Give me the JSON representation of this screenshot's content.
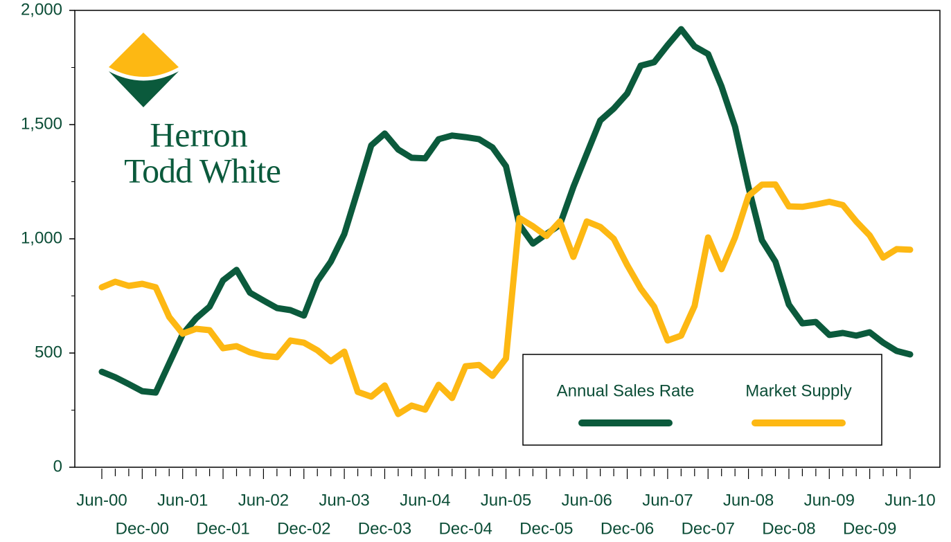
{
  "logo": {
    "line1": "Herron",
    "line2": "Todd White"
  },
  "chart_data": {
    "type": "line",
    "categories": [
      "Jun-00",
      null,
      null,
      "Dec-00",
      null,
      null,
      "Jun-01",
      null,
      null,
      "Dec-01",
      null,
      null,
      "Jun-02",
      null,
      null,
      "Dec-02",
      null,
      null,
      "Jun-03",
      null,
      null,
      "Dec-03",
      null,
      null,
      "Jun-04",
      null,
      null,
      "Dec-04",
      null,
      null,
      "Jun-05",
      null,
      null,
      "Dec-05",
      null,
      null,
      "Jun-06",
      null,
      null,
      "Dec-06",
      null,
      null,
      "Jun-07",
      null,
      null,
      "Dec-07",
      null,
      null,
      "Jun-08",
      null,
      null,
      "Dec-08",
      null,
      null,
      "Jun-09",
      null,
      null,
      "Dec-09",
      null,
      null,
      "Jun-10"
    ],
    "series": [
      {
        "name": "Annual Sales Rate",
        "color": "#0b5a3c",
        "values": [
          418,
          394,
          364,
          333,
          327,
          455,
          582,
          652,
          703,
          818,
          864,
          764,
          730,
          697,
          688,
          664,
          815,
          900,
          1021,
          1212,
          1409,
          1461,
          1391,
          1355,
          1352,
          1436,
          1452,
          1445,
          1436,
          1400,
          1318,
          1061,
          979,
          1021,
          1061,
          1227,
          1373,
          1518,
          1570,
          1636,
          1758,
          1773,
          1848,
          1918,
          1842,
          1809,
          1667,
          1491,
          1227,
          994,
          900,
          712,
          630,
          636,
          579,
          588,
          576,
          591,
          545,
          509,
          494
        ]
      },
      {
        "name": "Market Supply",
        "color": "#fdb813",
        "values": [
          788,
          812,
          794,
          803,
          788,
          658,
          585,
          606,
          600,
          521,
          530,
          503,
          488,
          482,
          555,
          545,
          512,
          464,
          506,
          330,
          309,
          358,
          233,
          270,
          252,
          361,
          303,
          442,
          448,
          400,
          476,
          1091,
          1055,
          1012,
          1076,
          921,
          1076,
          1052,
          1000,
          885,
          782,
          703,
          555,
          576,
          706,
          1006,
          867,
          1006,
          1188,
          1237,
          1238,
          1142,
          1140,
          1150,
          1162,
          1148,
          1076,
          1015,
          918,
          955,
          952
        ]
      }
    ],
    "ylim": [
      0,
      2000
    ],
    "yticks": [
      0,
      500,
      {
        "value": 1000,
        "label": "1,000"
      },
      {
        "value": 1500,
        "label": "1,500"
      },
      {
        "value": 2000,
        "label": "2,000"
      }
    ],
    "y_minor_ticks": [
      250,
      750,
      1250,
      1750
    ],
    "grid": false,
    "legend": "lower right"
  }
}
